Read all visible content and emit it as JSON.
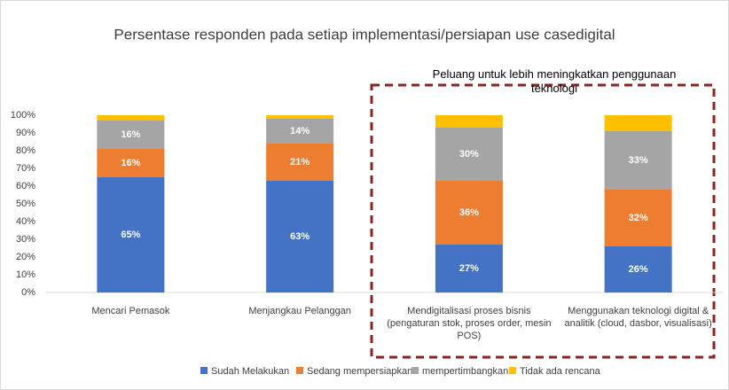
{
  "chart_data": {
    "type": "stacked_bar",
    "title": "Persentase responden pada setiap implementasi/persiapan use casedigital",
    "annotation": "Peluang untuk lebih meningkatkan penggunaan teknologi",
    "categories": [
      "Mencari Pemasok",
      "Menjangkau Pelanggan",
      "Mendigitalisasi proses bisnis (pengaturan stok, proses order, mesin POS)",
      "Menggunakan teknologi digital & analitik (cloud, dasbor, visualisasi)"
    ],
    "series": [
      {
        "name": "Sudah Melakukan",
        "color": "#4472c4",
        "values": [
          65,
          63,
          27,
          26
        ],
        "value_labels": [
          "65%",
          "63%",
          "27%",
          "26%"
        ]
      },
      {
        "name": "Sedang mempersiapkan",
        "color": "#ed7d31",
        "values": [
          16,
          21,
          36,
          32
        ],
        "value_labels": [
          "16%",
          "21%",
          "36%",
          "32%"
        ]
      },
      {
        "name": "mempertimbangkan",
        "color": "#a5a5a5",
        "values": [
          16,
          14,
          30,
          33
        ],
        "value_labels": [
          "16%",
          "14%",
          "30%",
          "33%"
        ]
      },
      {
        "name": "Tidak ada rencana",
        "color": "#ffc000",
        "values": [
          3,
          2,
          7,
          9
        ]
      }
    ],
    "ylim": [
      0,
      100
    ],
    "yticks": [
      {
        "value": 0,
        "label": "0%"
      },
      {
        "value": 10,
        "label": "10%"
      },
      {
        "value": 20,
        "label": "20%"
      },
      {
        "value": 30,
        "label": "30%"
      },
      {
        "value": 40,
        "label": "40%"
      },
      {
        "value": 50,
        "label": "50%"
      },
      {
        "value": 60,
        "label": "60%"
      },
      {
        "value": 70,
        "label": "70%"
      },
      {
        "value": 80,
        "label": "80%"
      },
      {
        "value": 90,
        "label": "90%"
      },
      {
        "value": 100,
        "label": "100%"
      }
    ],
    "grid": false
  }
}
